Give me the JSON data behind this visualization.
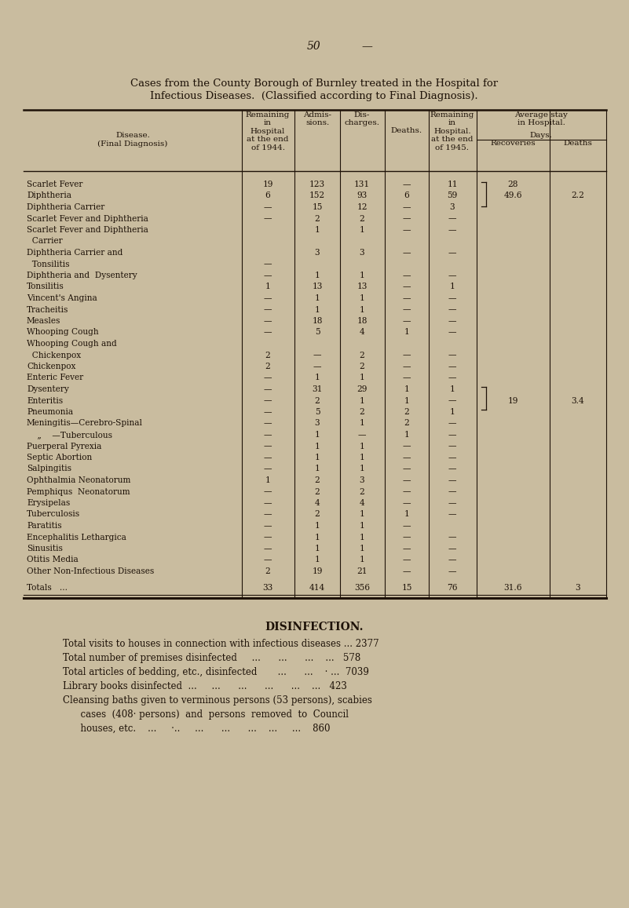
{
  "bg_color": "#c9bc9f",
  "text_color": "#1e1208",
  "page_number": "50",
  "title_line1": "Cases from the County Borough of Burnley treated in the Hospital for",
  "title_line2": "Infectious Diseases.  (Classified according to Final Diagnosis).",
  "rows": [
    [
      "Scarlet Fever",
      "19",
      "123",
      "131",
      "—",
      "11",
      "28",
      ""
    ],
    [
      "Diphtheria",
      "6",
      "152",
      "93",
      "6",
      "59",
      "49.6",
      "2.2"
    ],
    [
      "Diphtheria Carrier",
      "—",
      "15",
      "12",
      "—",
      "3",
      "",
      ""
    ],
    [
      "Scarlet Fever and Diphtheria",
      "—",
      "2",
      "2",
      "—",
      "—",
      "",
      ""
    ],
    [
      "Scarlet Fever and Diphtheria",
      "",
      "1",
      "1",
      "—",
      "—",
      "",
      ""
    ],
    [
      "  Carrier",
      "",
      "",
      "",
      "",
      "",
      "",
      ""
    ],
    [
      "Diphtheria Carrier and",
      "",
      "3",
      "3",
      "—",
      "—",
      "",
      ""
    ],
    [
      "  Tonsilitis",
      "—",
      "",
      "",
      "",
      "",
      "",
      ""
    ],
    [
      "Diphtheria and  Dysentery",
      "—",
      "1",
      "1",
      "—",
      "—",
      "",
      ""
    ],
    [
      "Tonsilitis",
      "1",
      "13",
      "13",
      "—",
      "1",
      "",
      ""
    ],
    [
      "Vincent's Angina",
      "—",
      "1",
      "1",
      "—",
      "—",
      "",
      ""
    ],
    [
      "Tracheitis",
      "—",
      "1",
      "1",
      "—",
      "—",
      "",
      ""
    ],
    [
      "Measles",
      "—",
      "18",
      "18",
      "—",
      "—",
      "",
      ""
    ],
    [
      "Whooping Cough",
      "—",
      "5",
      "4",
      "1",
      "—",
      "",
      ""
    ],
    [
      "Whooping Cough and",
      "",
      "",
      "",
      "",
      "",
      "",
      ""
    ],
    [
      "  Chickenpox",
      "2",
      "—",
      "2",
      "—",
      "—",
      "",
      ""
    ],
    [
      "Chickenpox",
      "2",
      "—",
      "2",
      "—",
      "—",
      "",
      ""
    ],
    [
      "Enteric Fever",
      "—",
      "1",
      "1",
      "—",
      "—",
      "",
      ""
    ],
    [
      "Dysentery",
      "—",
      "31",
      "29",
      "1",
      "1",
      "",
      ""
    ],
    [
      "Enteritis",
      "—",
      "2",
      "1",
      "1",
      "—",
      "19",
      "3.4"
    ],
    [
      "Pneumonia",
      "—",
      "5",
      "2",
      "2",
      "1",
      "",
      ""
    ],
    [
      "Meningitis—Cerebro-Spinal",
      "—",
      "3",
      "1",
      "2",
      "—",
      "",
      ""
    ],
    [
      "    „    —Tuberculous",
      "—",
      "1",
      "—",
      "1",
      "—",
      "",
      ""
    ],
    [
      "Puerperal Pyrexia",
      "—",
      "1",
      "1",
      "—",
      "—",
      "",
      ""
    ],
    [
      "Septic Abortion",
      "—",
      "1",
      "1",
      "—",
      "—",
      "",
      ""
    ],
    [
      "Salpingitis",
      "—",
      "1",
      "1",
      "—",
      "—",
      "",
      ""
    ],
    [
      "Ophthalmia Neonatorum",
      "1",
      "2",
      "3",
      "—",
      "—",
      "",
      ""
    ],
    [
      "Pemphiqus  Neonatorum",
      "—",
      "2",
      "2",
      "—",
      "—",
      "",
      ""
    ],
    [
      "Erysipelas",
      "—",
      "4",
      "4",
      "—",
      "—",
      "",
      ""
    ],
    [
      "Tuberculosis",
      "—",
      "2",
      "1",
      "1",
      "—",
      "",
      ""
    ],
    [
      "Paratitis",
      "—",
      "1",
      "1",
      "—",
      "",
      "",
      ""
    ],
    [
      "Encephalitis Lethargica",
      "—",
      "1",
      "1",
      "—",
      "—",
      "",
      ""
    ],
    [
      "Sinusitis",
      "—",
      "1",
      "1",
      "—",
      "—",
      "",
      ""
    ],
    [
      "Otitis Media",
      "—",
      "1",
      "1",
      "—",
      "—",
      "",
      ""
    ],
    [
      "Other Non-Infectious Diseases",
      "2",
      "19",
      "21",
      "—",
      "—",
      "",
      ""
    ]
  ],
  "totals_row": [
    "Totals   ...",
    "33",
    "414",
    "356",
    "15",
    "76",
    "31.6",
    "3"
  ],
  "disinfection_lines": [
    [
      "Total visits to houses in connection with infectious diseases ... 2377",
      false
    ],
    [
      "Total number of premises disinfected     ...      ...      ...    ...   578",
      false
    ],
    [
      "Total articles of bedding, etc., disinfected       ...      ...    · ...  7039",
      false
    ],
    [
      "Library books disinfected  ...     ...      ...      ...      ...    ...   423",
      false
    ],
    [
      "Cleansing baths given to verminous persons (53 persons), scabies",
      false
    ],
    [
      "      cases  (408· persons)  and  persons  removed  to  Council",
      false
    ],
    [
      "      houses, etc.    ...     ·..     ...      ...      ...    ...     ...    860",
      false
    ]
  ]
}
